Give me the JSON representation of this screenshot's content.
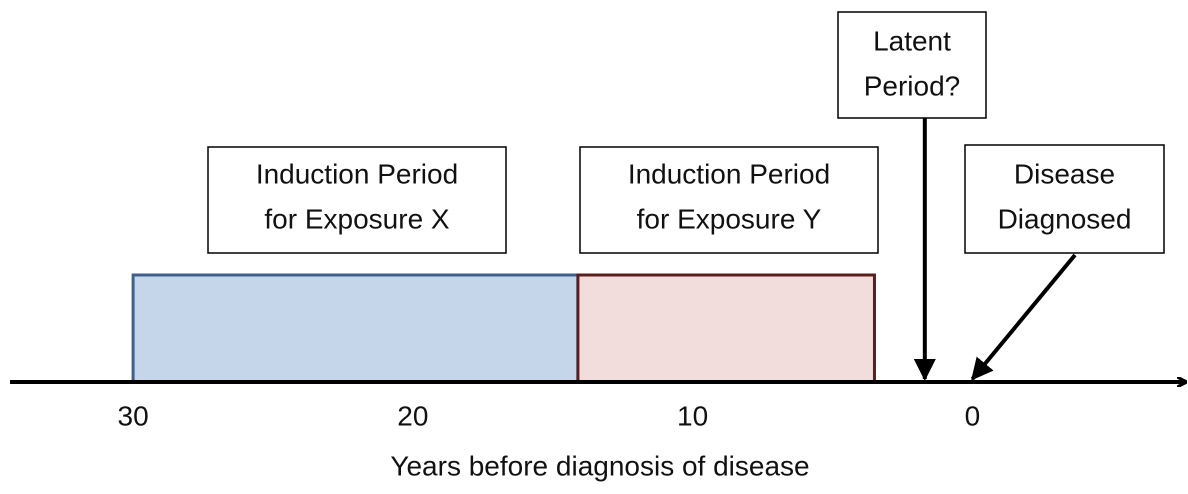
{
  "axis": {
    "label": "Years before diagnosis of disease",
    "ticks": [
      30,
      20,
      10,
      0
    ],
    "lim": [
      34.4,
      -7.6
    ]
  },
  "periods": [
    {
      "lines": [
        "Induction Period",
        "for Exposure X"
      ],
      "start": 30,
      "end": 14.1,
      "color": "#c5d6ea",
      "border": "#41618c"
    },
    {
      "lines": [
        "Induction Period",
        "for Exposure Y"
      ],
      "start": 14.1,
      "end": 3.5,
      "color": "#f3dcdc",
      "border": "#5a1f1f"
    }
  ],
  "markers": [
    {
      "lines": [
        "Latent",
        "Period?"
      ],
      "value": 1.7
    },
    {
      "lines": [
        "Disease",
        "Diagnosed"
      ],
      "value": 0
    }
  ]
}
